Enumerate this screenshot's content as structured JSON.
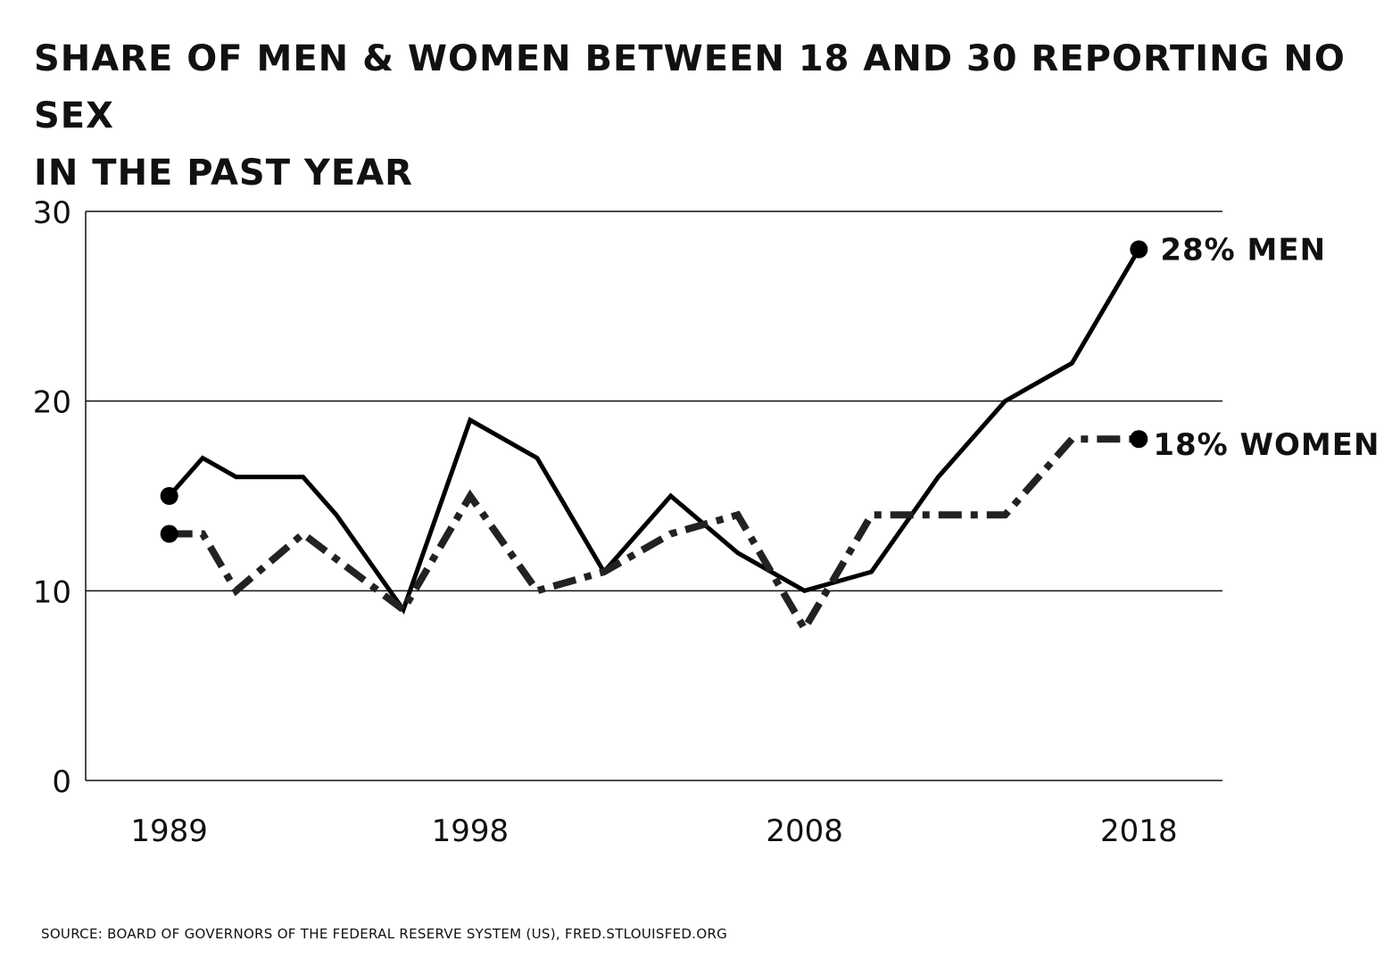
{
  "title_lines": [
    "SHARE OF MEN & WOMEN BETWEEN 18 AND 30 REPORTING NO SEX",
    "IN THE PAST YEAR"
  ],
  "source": "SOURCE: BOARD OF GOVERNORS OF THE FEDERAL RESERVE SYSTEM (US), FRED.STLOUISFED.ORG",
  "chart_data": {
    "type": "line",
    "title": "SHARE OF MEN & WOMEN BETWEEN 18 AND 30 REPORTING NO SEX IN THE PAST YEAR",
    "xlabel": "",
    "ylabel": "",
    "ylim": [
      0,
      30
    ],
    "xlim": [
      1986.5,
      2020.5
    ],
    "grid": true,
    "yticks": [
      0,
      10,
      20,
      30
    ],
    "xticks": [
      1989,
      1998,
      2008,
      2018
    ],
    "series": [
      {
        "name": "MEN",
        "end_label": "28%  MEN",
        "color": "#000000",
        "style": "solid",
        "x": [
          1989,
          1990,
          1991,
          1993,
          1994,
          1996,
          1998,
          2000,
          2002,
          2004,
          2006,
          2008,
          2010,
          2012,
          2014,
          2016,
          2018
        ],
        "y": [
          15,
          17,
          16,
          16,
          14,
          9,
          19,
          17,
          11,
          15,
          12,
          10,
          11,
          16,
          20,
          22,
          28
        ]
      },
      {
        "name": "WOMEN",
        "end_label": "18% WOMEN",
        "color": "#222222",
        "style": "dashed",
        "x": [
          1989,
          1990,
          1991,
          1993,
          1996,
          1998,
          2000,
          2002,
          2004,
          2006,
          2008,
          2010,
          2014,
          2016,
          2018
        ],
        "y": [
          13,
          13,
          10,
          13,
          9,
          15,
          10,
          11,
          13,
          14,
          8,
          14,
          14,
          18,
          18
        ]
      }
    ]
  }
}
